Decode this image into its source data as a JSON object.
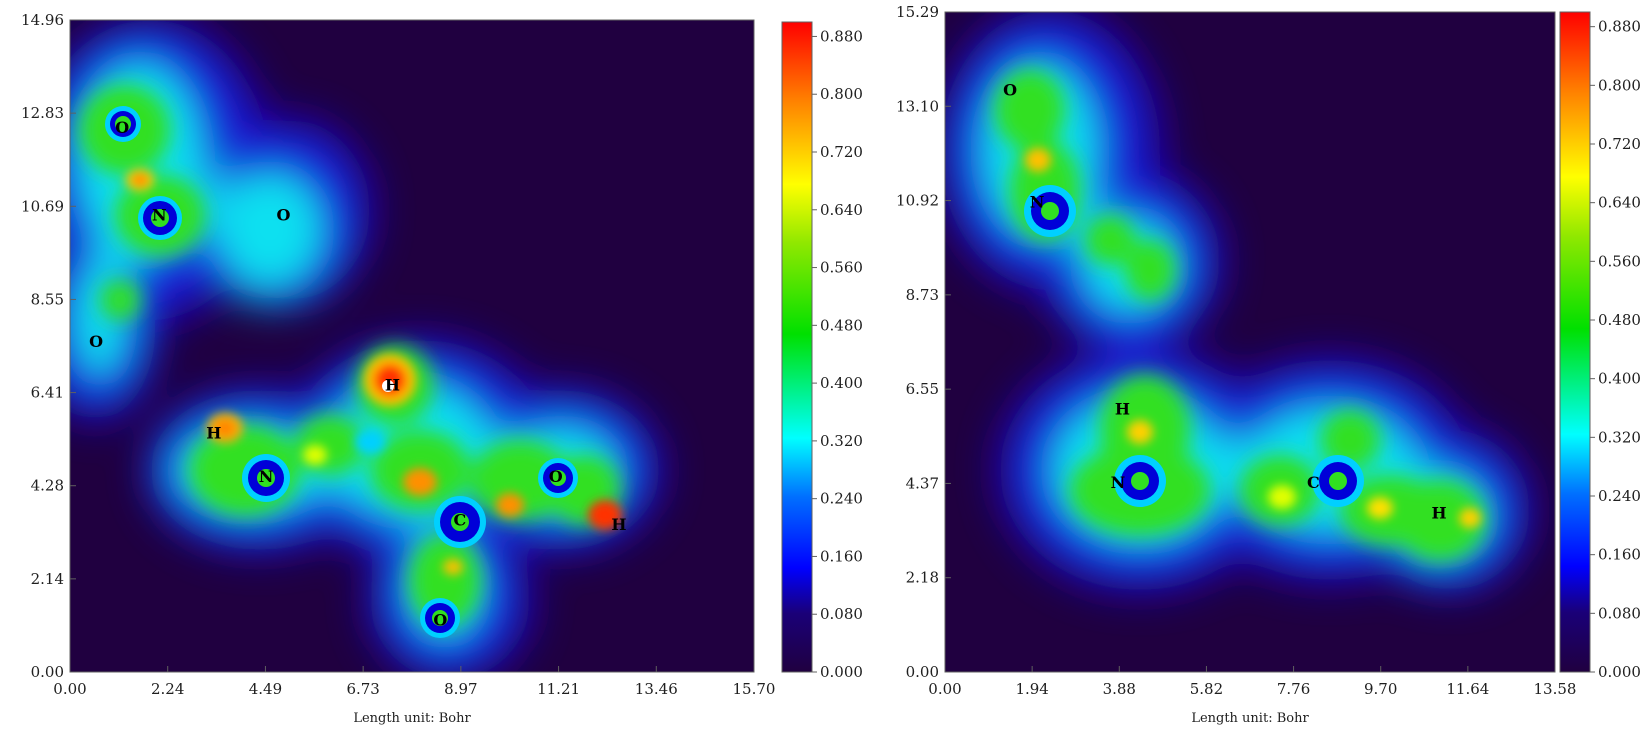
{
  "chart_data": [
    {
      "type": "heatmap",
      "xlabel": "Length unit: Bohr",
      "xlim": [
        0,
        15.7
      ],
      "ylim": [
        0,
        14.96
      ],
      "x_ticks": [
        "0.00",
        "2.24",
        "4.49",
        "6.73",
        "8.97",
        "11.21",
        "13.46",
        "15.70"
      ],
      "y_ticks": [
        "0.00",
        "2.14",
        "4.28",
        "6.41",
        "8.55",
        "10.69",
        "12.83",
        "14.96"
      ],
      "colorbar": {
        "range": [
          0,
          0.9
        ],
        "ticks": [
          "0.000",
          "0.080",
          "0.160",
          "0.240",
          "0.320",
          "0.400",
          "0.480",
          "0.560",
          "0.640",
          "0.720",
          "0.800",
          "0.880"
        ]
      },
      "atoms": [
        {
          "label": "O",
          "x": 1.2,
          "y": 12.5
        },
        {
          "label": "N",
          "x": 2.05,
          "y": 10.5
        },
        {
          "label": "O",
          "x": 4.9,
          "y": 10.5
        },
        {
          "label": "O",
          "x": 0.6,
          "y": 7.6
        },
        {
          "label": "H",
          "x": 7.4,
          "y": 6.6
        },
        {
          "label": "H",
          "x": 3.3,
          "y": 5.5
        },
        {
          "label": "N",
          "x": 4.5,
          "y": 4.5
        },
        {
          "label": "C",
          "x": 8.95,
          "y": 3.5
        },
        {
          "label": "O",
          "x": 11.15,
          "y": 4.5
        },
        {
          "label": "H",
          "x": 12.6,
          "y": 3.4
        },
        {
          "label": "O",
          "x": 8.5,
          "y": 1.2
        }
      ]
    },
    {
      "type": "heatmap",
      "xlabel": "Length unit: Bohr",
      "xlim": [
        0,
        13.58
      ],
      "ylim": [
        0,
        15.29
      ],
      "x_ticks": [
        "0.00",
        "1.94",
        "3.88",
        "5.82",
        "7.76",
        "9.70",
        "11.64",
        "13.58"
      ],
      "y_ticks": [
        "0.00",
        "2.18",
        "4.37",
        "6.55",
        "8.73",
        "10.92",
        "13.10",
        "15.29"
      ],
      "colorbar": {
        "range": [
          0,
          0.9
        ],
        "ticks": [
          "0.000",
          "0.080",
          "0.160",
          "0.240",
          "0.320",
          "0.400",
          "0.480",
          "0.560",
          "0.640",
          "0.720",
          "0.800",
          "0.880"
        ]
      },
      "atoms": [
        {
          "label": "O",
          "x": 1.45,
          "y": 13.5
        },
        {
          "label": "N",
          "x": 2.05,
          "y": 10.9
        },
        {
          "label": "H",
          "x": 3.95,
          "y": 6.1
        },
        {
          "label": "N",
          "x": 3.85,
          "y": 4.4
        },
        {
          "label": "C",
          "x": 8.2,
          "y": 4.4
        },
        {
          "label": "H",
          "x": 11.0,
          "y": 3.7
        }
      ]
    }
  ]
}
